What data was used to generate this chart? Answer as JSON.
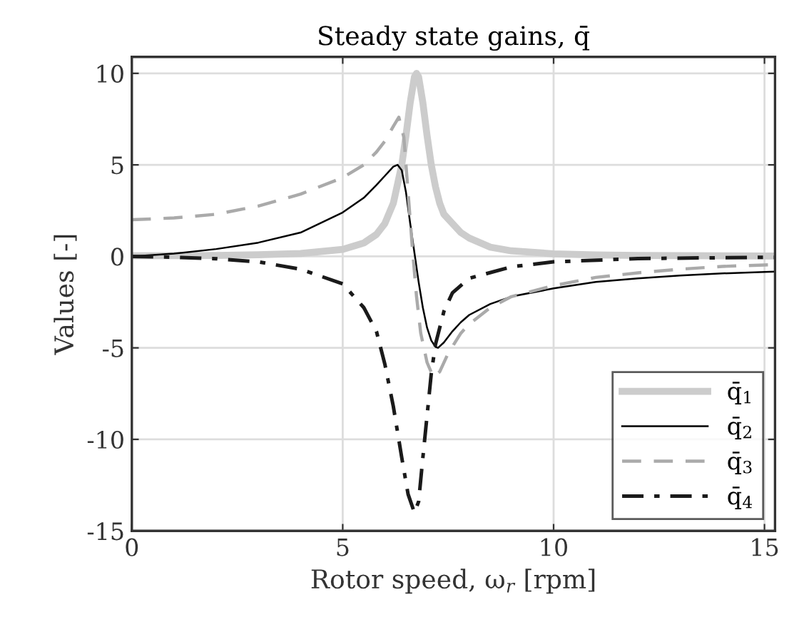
{
  "chart_data": {
    "type": "line",
    "title": "Steady state gains, q̄",
    "xlabel": "Rotor speed, ω$_{r}$ [rpm]",
    "ylabel": "Values [-]",
    "xlim": [
      0,
      15.25
    ],
    "ylim": [
      -15,
      10.9
    ],
    "xticks": [
      0,
      5,
      10,
      15
    ],
    "yticks": [
      -15,
      -10,
      -5,
      0,
      5,
      10
    ],
    "grid": true,
    "legend": "bottom right",
    "series": [
      {
        "name": "q̄$_{1}$",
        "color": "#cccccc",
        "line_style": "solid",
        "x": [
          0,
          1,
          2,
          3,
          4,
          5,
          5.5,
          5.8,
          6,
          6.2,
          6.4,
          6.5,
          6.6,
          6.7,
          6.75,
          6.8,
          6.9,
          7.0,
          7.1,
          7.2,
          7.3,
          7.4,
          7.6,
          7.8,
          8,
          8.5,
          9,
          10,
          11,
          12,
          13,
          14,
          15,
          15.25
        ],
        "values": [
          0.03,
          0.04,
          0.05,
          0.09,
          0.16,
          0.38,
          0.73,
          1.2,
          1.8,
          2.9,
          5.0,
          6.6,
          8.4,
          9.8,
          10,
          9.8,
          8.4,
          6.6,
          5.0,
          3.8,
          2.9,
          2.3,
          1.8,
          1.3,
          1.0,
          0.5,
          0.3,
          0.14,
          0.08,
          0.05,
          0.04,
          0.03,
          0.02,
          0.02
        ]
      },
      {
        "name": "q̄$_{2}$",
        "color": "#000000",
        "line_style": "solid",
        "x": [
          0,
          1,
          2,
          3,
          4,
          5,
          5.5,
          5.8,
          6,
          6.2,
          6.3,
          6.4,
          6.5,
          6.6,
          6.7,
          6.8,
          6.9,
          7.0,
          7.1,
          7.2,
          7.26,
          7.4,
          7.6,
          7.8,
          8,
          8.5,
          9,
          10,
          11,
          12,
          13,
          14,
          15,
          15.25
        ],
        "values": [
          0,
          0.15,
          0.4,
          0.75,
          1.3,
          2.4,
          3.2,
          3.9,
          4.4,
          4.9,
          5.0,
          4.7,
          3.5,
          1.8,
          0.2,
          -1.4,
          -2.8,
          -3.9,
          -4.6,
          -4.95,
          -5.0,
          -4.7,
          -4.1,
          -3.6,
          -3.2,
          -2.6,
          -2.2,
          -1.75,
          -1.4,
          -1.2,
          -1.05,
          -0.93,
          -0.85,
          -0.83
        ]
      },
      {
        "name": "q̄$_{3}$",
        "color": "#aaaaaa",
        "line_style": "dashed",
        "x": [
          0,
          1,
          2,
          3,
          4,
          5,
          5.5,
          5.8,
          6,
          6.2,
          6.33,
          6.45,
          6.55,
          6.65,
          6.75,
          6.85,
          7.0,
          7.15,
          7.3,
          7.5,
          7.8,
          8,
          8.5,
          9,
          10,
          11,
          12,
          13,
          14,
          15,
          15.25
        ],
        "values": [
          2.0,
          2.1,
          2.3,
          2.75,
          3.4,
          4.3,
          5.0,
          5.7,
          6.3,
          7.1,
          7.6,
          6.5,
          3.5,
          0.5,
          -2.2,
          -4.2,
          -5.8,
          -6.6,
          -6.3,
          -5.3,
          -4.2,
          -3.7,
          -2.8,
          -2.2,
          -1.6,
          -1.15,
          -0.9,
          -0.7,
          -0.55,
          -0.47,
          -0.45
        ]
      },
      {
        "name": "q̄$_{4}$",
        "color": "#1a1a1a",
        "line_style": "dashdot",
        "x": [
          0,
          1,
          2,
          3,
          4,
          5,
          5.5,
          5.8,
          6,
          6.2,
          6.4,
          6.55,
          6.7,
          6.8,
          6.9,
          7.0,
          7.1,
          7.2,
          7.4,
          7.6,
          8,
          9,
          10,
          12,
          15,
          15.25
        ],
        "values": [
          0,
          -0.05,
          -0.13,
          -0.3,
          -0.7,
          -1.5,
          -2.8,
          -4.1,
          -5.9,
          -8.2,
          -11,
          -13,
          -14,
          -13.4,
          -11,
          -8.7,
          -6.4,
          -4.8,
          -3.0,
          -2.0,
          -1.2,
          -0.57,
          -0.3,
          -0.12,
          -0.05,
          -0.05
        ]
      }
    ]
  }
}
